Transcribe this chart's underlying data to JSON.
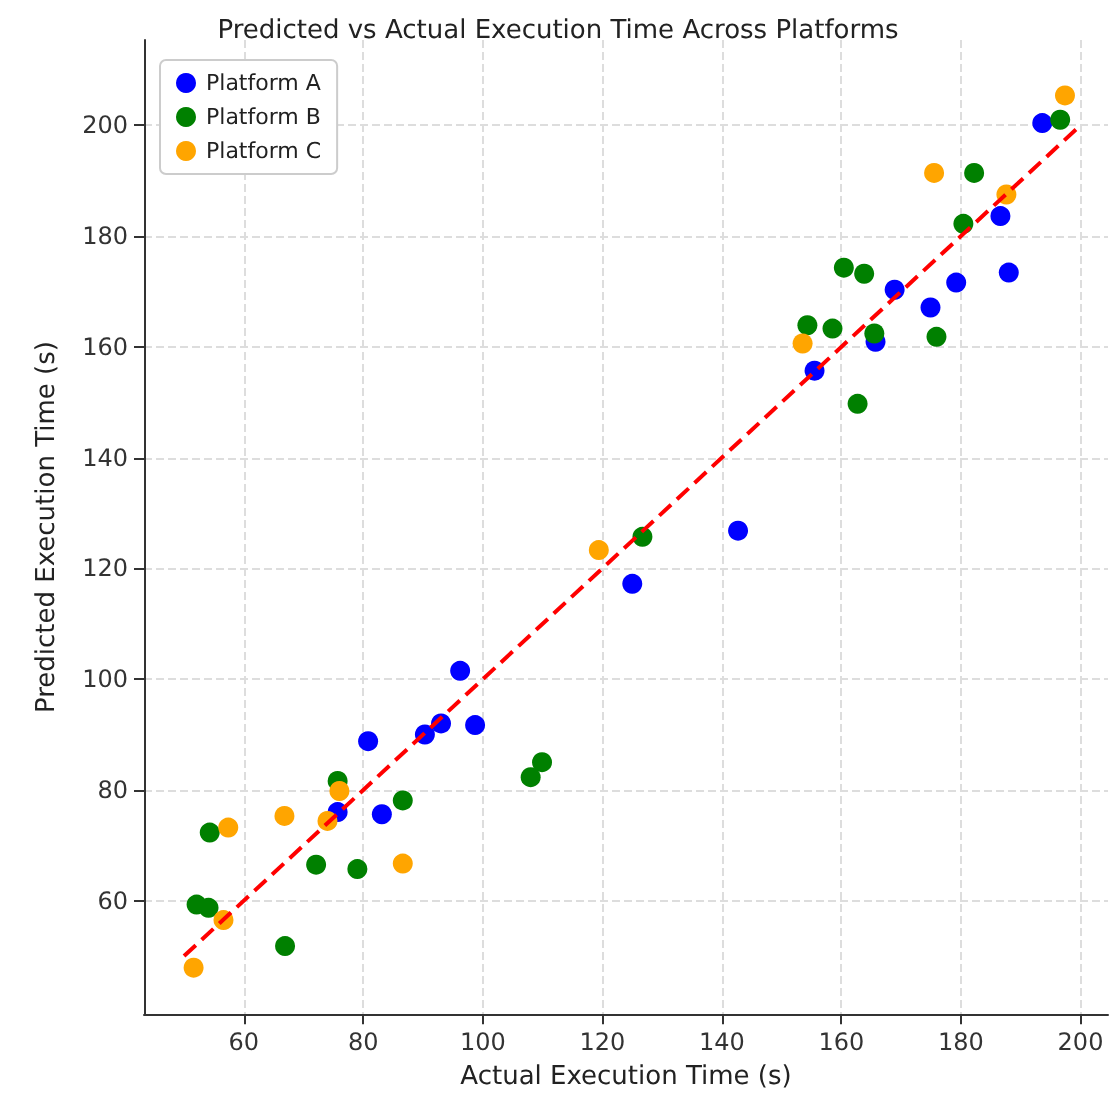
{
  "chart_data": {
    "type": "scatter",
    "title": "Predicted vs Actual Execution Time Across Platforms",
    "xlabel": "Actual Execution Time (s)",
    "ylabel": "Predicted Execution Time (s)",
    "xlim": [
      43.3,
      204.6
    ],
    "ylim": [
      39.5,
      215.4
    ],
    "xticks": [
      60,
      80,
      100,
      120,
      140,
      160,
      180,
      200
    ],
    "yticks": [
      60,
      80,
      100,
      120,
      140,
      160,
      180,
      200
    ],
    "grid": true,
    "legend": "top left",
    "marker": "circle",
    "series": [
      {
        "name": "Platform A",
        "color": "#0000ff",
        "x": [
          96.2,
          80.8,
          90.3,
          93.0,
          98.7,
          75.7,
          83.1,
          193.6,
          186.6,
          188.0,
          179.2,
          174.9,
          168.9,
          165.7,
          155.5,
          142.7,
          125.0
        ],
        "values": [
          101.5,
          88.8,
          90.0,
          92.0,
          91.7,
          76.0,
          75.6,
          200.4,
          183.6,
          173.4,
          171.6,
          167.1,
          170.3,
          160.9,
          155.7,
          126.8,
          117.2
        ]
      },
      {
        "name": "Platform B",
        "color": "#008000",
        "x": [
          54.3,
          75.7,
          86.6,
          72.1,
          79.0,
          52.1,
          54.1,
          66.9,
          196.6,
          182.2,
          180.4,
          160.4,
          163.8,
          154.3,
          158.5,
          165.5,
          175.9,
          162.7,
          126.7,
          109.9,
          108.0
        ],
        "values": [
          72.3,
          81.6,
          78.1,
          66.5,
          65.7,
          59.3,
          58.7,
          51.8,
          201.0,
          191.4,
          182.2,
          174.3,
          173.2,
          163.9,
          163.3,
          162.4,
          161.8,
          149.7,
          125.7,
          85.0,
          82.3
        ]
      },
      {
        "name": "Platform C",
        "color": "#ffa500",
        "x": [
          57.4,
          66.8,
          74.0,
          76.0,
          86.6,
          56.6,
          51.6,
          197.4,
          175.5,
          187.6,
          153.5,
          119.4
        ],
        "values": [
          73.2,
          75.3,
          74.4,
          79.8,
          66.7,
          56.5,
          47.9,
          205.4,
          191.4,
          187.5,
          160.6,
          123.3
        ]
      },
      {
        "type": "line",
        "color": "#ff0000",
        "line_style": "dashed",
        "marker": "none",
        "x": [
          50,
          200
        ],
        "values": [
          50,
          200
        ]
      }
    ]
  }
}
